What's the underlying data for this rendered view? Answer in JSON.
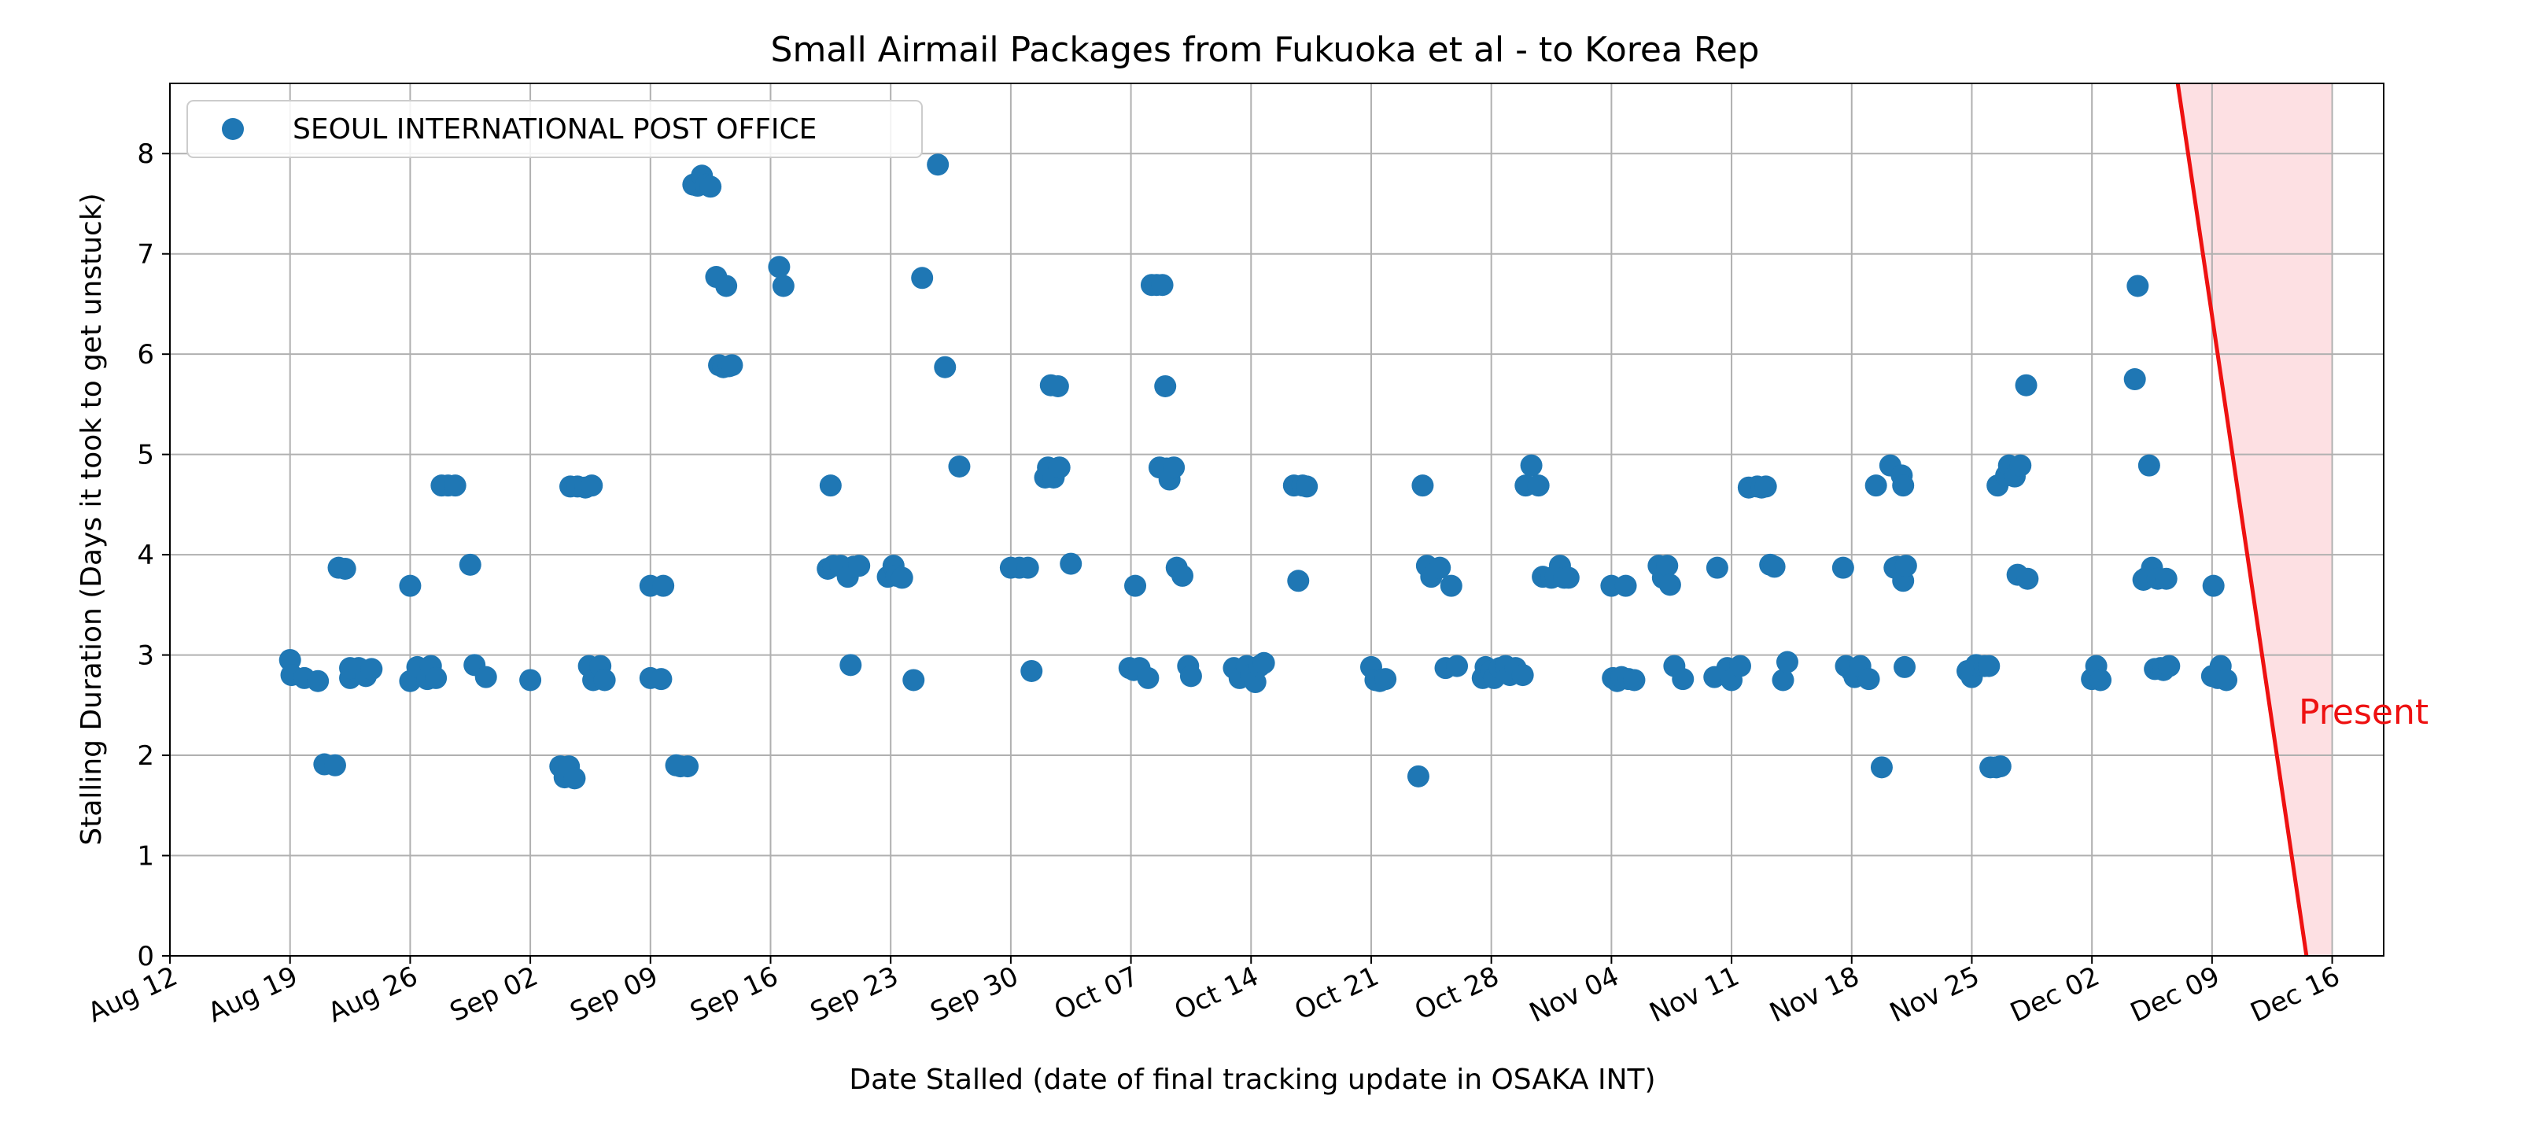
{
  "chart_data": {
    "type": "scatter",
    "title": "Small Airmail Packages from Fukuoka et al - to Korea Rep",
    "xlabel": "Date Stalled (date of final tracking update in OSAKA INT)",
    "ylabel": "Stalling Duration (Days it took to get unstuck)",
    "x_axis_kind": "date",
    "xlim": [
      "2024-08-12",
      "2024-12-19"
    ],
    "ylim": [
      0,
      8.7
    ],
    "x_ticks": [
      {
        "date": "2024-08-12",
        "label": "Aug 12"
      },
      {
        "date": "2024-08-19",
        "label": "Aug 19"
      },
      {
        "date": "2024-08-26",
        "label": "Aug 26"
      },
      {
        "date": "2024-09-02",
        "label": "Sep 02"
      },
      {
        "date": "2024-09-09",
        "label": "Sep 09"
      },
      {
        "date": "2024-09-16",
        "label": "Sep 16"
      },
      {
        "date": "2024-09-23",
        "label": "Sep 23"
      },
      {
        "date": "2024-09-30",
        "label": "Sep 30"
      },
      {
        "date": "2024-10-07",
        "label": "Oct 07"
      },
      {
        "date": "2024-10-14",
        "label": "Oct 14"
      },
      {
        "date": "2024-10-21",
        "label": "Oct 21"
      },
      {
        "date": "2024-10-28",
        "label": "Oct 28"
      },
      {
        "date": "2024-11-04",
        "label": "Nov 04"
      },
      {
        "date": "2024-11-11",
        "label": "Nov 11"
      },
      {
        "date": "2024-11-18",
        "label": "Nov 18"
      },
      {
        "date": "2024-11-25",
        "label": "Nov 25"
      },
      {
        "date": "2024-12-02",
        "label": "Dec 02"
      },
      {
        "date": "2024-12-09",
        "label": "Dec 09"
      },
      {
        "date": "2024-12-16",
        "label": "Dec 16"
      }
    ],
    "y_ticks": [
      {
        "value": 0,
        "label": "0"
      },
      {
        "value": 1,
        "label": "1"
      },
      {
        "value": 2,
        "label": "2"
      },
      {
        "value": 3,
        "label": "3"
      },
      {
        "value": 4,
        "label": "4"
      },
      {
        "value": 5,
        "label": "5"
      },
      {
        "value": 6,
        "label": "6"
      },
      {
        "value": 7,
        "label": "7"
      },
      {
        "value": 8,
        "label": "8"
      }
    ],
    "grid": true,
    "legend": "top-left",
    "colors": {
      "series": "#1f77b4",
      "present_line": "#ee1111",
      "present_fill": "#fde0e3",
      "grid": "#b0b0b0"
    },
    "series": [
      {
        "name": "SEOUL INTERNATIONAL POST OFFICE",
        "points": [
          [
            "2024-08-19T00:00",
            2.95
          ],
          [
            "2024-08-19T02:00",
            2.8
          ],
          [
            "2024-08-19T20:00",
            2.77
          ],
          [
            "2024-08-20T15:00",
            2.74
          ],
          [
            "2024-08-21T00:00",
            1.91
          ],
          [
            "2024-08-21T15:00",
            1.9
          ],
          [
            "2024-08-21T20:00",
            3.87
          ],
          [
            "2024-08-22T05:00",
            3.86
          ],
          [
            "2024-08-22T12:00",
            2.77
          ],
          [
            "2024-08-22T12:00",
            2.87
          ],
          [
            "2024-08-23T00:00",
            2.87
          ],
          [
            "2024-08-23T10:00",
            2.79
          ],
          [
            "2024-08-23T18:00",
            2.86
          ],
          [
            "2024-08-26T00:00",
            3.69
          ],
          [
            "2024-08-26T00:00",
            2.74
          ],
          [
            "2024-08-26T10:00",
            2.88
          ],
          [
            "2024-08-27T00:00",
            2.76
          ],
          [
            "2024-08-27T05:00",
            2.89
          ],
          [
            "2024-08-27T12:00",
            2.77
          ],
          [
            "2024-08-27T20:00",
            4.69
          ],
          [
            "2024-08-28T05:00",
            4.69
          ],
          [
            "2024-08-28T15:00",
            4.69
          ],
          [
            "2024-08-29T12:00",
            3.9
          ],
          [
            "2024-08-29T18:00",
            2.9
          ],
          [
            "2024-08-30T10:00",
            2.78
          ],
          [
            "2024-09-02T00:00",
            2.75
          ],
          [
            "2024-09-03T18:00",
            1.89
          ],
          [
            "2024-09-04T00:00",
            1.78
          ],
          [
            "2024-09-04T06:00",
            1.89
          ],
          [
            "2024-09-04T08:00",
            4.68
          ],
          [
            "2024-09-04T14:00",
            1.77
          ],
          [
            "2024-09-04T18:00",
            4.68
          ],
          [
            "2024-09-05T05:00",
            4.67
          ],
          [
            "2024-09-05T10:00",
            2.89
          ],
          [
            "2024-09-05T14:00",
            4.69
          ],
          [
            "2024-09-05T16:00",
            2.75
          ],
          [
            "2024-09-06T02:00",
            2.89
          ],
          [
            "2024-09-06T08:00",
            2.75
          ],
          [
            "2024-09-09T00:00",
            3.69
          ],
          [
            "2024-09-09T00:00",
            2.77
          ],
          [
            "2024-09-09T15:00",
            2.76
          ],
          [
            "2024-09-09T18:00",
            3.69
          ],
          [
            "2024-09-10T12:00",
            1.9
          ],
          [
            "2024-09-10T18:00",
            1.89
          ],
          [
            "2024-09-11T04:00",
            1.89
          ],
          [
            "2024-09-11T12:00",
            7.69
          ],
          [
            "2024-09-11T18:00",
            7.68
          ],
          [
            "2024-09-12T00:00",
            7.78
          ],
          [
            "2024-09-12T06:00",
            7.69
          ],
          [
            "2024-09-12T12:00",
            7.67
          ],
          [
            "2024-09-12T20:00",
            6.77
          ],
          [
            "2024-09-13T00:00",
            5.89
          ],
          [
            "2024-09-13T06:00",
            5.87
          ],
          [
            "2024-09-13T10:00",
            6.68
          ],
          [
            "2024-09-13T14:00",
            5.88
          ],
          [
            "2024-09-13T18:00",
            5.89
          ],
          [
            "2024-09-16T12:00",
            6.87
          ],
          [
            "2024-09-16T18:00",
            6.68
          ],
          [
            "2024-09-19T12:00",
            4.69
          ],
          [
            "2024-09-19T08:00",
            3.86
          ],
          [
            "2024-09-19T16:00",
            3.89
          ],
          [
            "2024-09-20T02:00",
            3.89
          ],
          [
            "2024-09-20T12:00",
            3.78
          ],
          [
            "2024-09-20T16:00",
            2.9
          ],
          [
            "2024-09-20T20:00",
            3.88
          ],
          [
            "2024-09-21T04:00",
            3.89
          ],
          [
            "2024-09-22T20:00",
            3.78
          ],
          [
            "2024-09-23T04:00",
            3.89
          ],
          [
            "2024-09-23T08:00",
            3.79
          ],
          [
            "2024-09-23T16:00",
            3.77
          ],
          [
            "2024-09-24T08:00",
            2.75
          ],
          [
            "2024-09-24T20:00",
            6.76
          ],
          [
            "2024-09-25T18:00",
            7.89
          ],
          [
            "2024-09-26T04:00",
            5.87
          ],
          [
            "2024-09-27T00:00",
            4.88
          ],
          [
            "2024-09-30T00:00",
            3.87
          ],
          [
            "2024-09-30T12:00",
            3.87
          ],
          [
            "2024-10-01T00:00",
            3.87
          ],
          [
            "2024-10-01T05:00",
            2.84
          ],
          [
            "2024-10-02T00:00",
            4.77
          ],
          [
            "2024-10-02T04:00",
            4.87
          ],
          [
            "2024-10-02T08:00",
            5.69
          ],
          [
            "2024-10-02T12:00",
            4.77
          ],
          [
            "2024-10-02T18:00",
            5.68
          ],
          [
            "2024-10-02T20:00",
            4.87
          ],
          [
            "2024-10-03T12:00",
            3.91
          ],
          [
            "2024-10-06T22:00",
            2.87
          ],
          [
            "2024-10-07T04:00",
            2.85
          ],
          [
            "2024-10-07T06:00",
            3.69
          ],
          [
            "2024-10-07T12:00",
            2.87
          ],
          [
            "2024-10-08T00:00",
            2.77
          ],
          [
            "2024-10-08T05:00",
            6.69
          ],
          [
            "2024-10-08T12:00",
            6.69
          ],
          [
            "2024-10-08T16:00",
            4.87
          ],
          [
            "2024-10-08T20:00",
            6.69
          ],
          [
            "2024-10-09T00:00",
            5.68
          ],
          [
            "2024-10-09T02:00",
            4.86
          ],
          [
            "2024-10-09T06:00",
            4.75
          ],
          [
            "2024-10-09T12:00",
            4.87
          ],
          [
            "2024-10-09T16:00",
            3.87
          ],
          [
            "2024-10-10T00:00",
            3.79
          ],
          [
            "2024-10-10T08:00",
            2.89
          ],
          [
            "2024-10-10T12:00",
            2.79
          ],
          [
            "2024-10-13T00:00",
            2.87
          ],
          [
            "2024-10-13T08:00",
            2.77
          ],
          [
            "2024-10-13T18:00",
            2.89
          ],
          [
            "2024-10-14T00:00",
            2.8
          ],
          [
            "2024-10-14T06:00",
            2.73
          ],
          [
            "2024-10-14T12:00",
            2.89
          ],
          [
            "2024-10-14T18:00",
            2.92
          ],
          [
            "2024-10-16T12:00",
            4.69
          ],
          [
            "2024-10-16T18:00",
            3.74
          ],
          [
            "2024-10-17T00:00",
            4.69
          ],
          [
            "2024-10-17T06:00",
            4.68
          ],
          [
            "2024-10-21T00:00",
            2.88
          ],
          [
            "2024-10-21T06:00",
            2.75
          ],
          [
            "2024-10-21T12:00",
            2.74
          ],
          [
            "2024-10-21T20:00",
            2.76
          ],
          [
            "2024-10-23T18:00",
            1.79
          ],
          [
            "2024-10-24T00:00",
            4.69
          ],
          [
            "2024-10-24T06:00",
            3.89
          ],
          [
            "2024-10-24T12:00",
            3.78
          ],
          [
            "2024-10-25T00:00",
            3.87
          ],
          [
            "2024-10-25T08:00",
            2.87
          ],
          [
            "2024-10-25T16:00",
            3.69
          ],
          [
            "2024-10-26T00:00",
            2.89
          ],
          [
            "2024-10-27T12:00",
            2.77
          ],
          [
            "2024-10-27T16:00",
            2.88
          ],
          [
            "2024-10-28T00:00",
            2.84
          ],
          [
            "2024-10-28T04:00",
            2.77
          ],
          [
            "2024-10-28T12:00",
            2.87
          ],
          [
            "2024-10-28T20:00",
            2.89
          ],
          [
            "2024-10-29T02:00",
            2.8
          ],
          [
            "2024-10-29T10:00",
            2.87
          ],
          [
            "2024-10-29T20:00",
            2.8
          ],
          [
            "2024-10-30T00:00",
            4.69
          ],
          [
            "2024-10-30T08:00",
            4.89
          ],
          [
            "2024-10-30T18:00",
            4.69
          ],
          [
            "2024-10-31T00:00",
            3.78
          ],
          [
            "2024-10-31T12:00",
            3.77
          ],
          [
            "2024-10-31T18:00",
            3.79
          ],
          [
            "2024-11-01T00:00",
            3.89
          ],
          [
            "2024-11-01T06:00",
            3.77
          ],
          [
            "2024-11-01T12:00",
            3.77
          ],
          [
            "2024-11-04T00:00",
            3.69
          ],
          [
            "2024-11-04T02:00",
            2.77
          ],
          [
            "2024-11-04T08:00",
            2.74
          ],
          [
            "2024-11-04T14:00",
            2.78
          ],
          [
            "2024-11-04T20:00",
            3.69
          ],
          [
            "2024-11-05T00:00",
            2.76
          ],
          [
            "2024-11-05T08:00",
            2.75
          ],
          [
            "2024-11-06T18:00",
            3.89
          ],
          [
            "2024-11-07T00:00",
            3.77
          ],
          [
            "2024-11-07T06:00",
            3.89
          ],
          [
            "2024-11-07T10:00",
            3.7
          ],
          [
            "2024-11-07T16:00",
            2.89
          ],
          [
            "2024-11-08T04:00",
            2.76
          ],
          [
            "2024-11-10T00:00",
            2.78
          ],
          [
            "2024-11-10T04:00",
            3.87
          ],
          [
            "2024-11-10T18:00",
            2.87
          ],
          [
            "2024-11-11T00:00",
            2.75
          ],
          [
            "2024-11-11T12:00",
            2.89
          ],
          [
            "2024-11-12T00:00",
            4.67
          ],
          [
            "2024-11-12T12:00",
            4.68
          ],
          [
            "2024-11-12T18:00",
            4.67
          ],
          [
            "2024-11-13T00:00",
            4.68
          ],
          [
            "2024-11-13T06:00",
            3.9
          ],
          [
            "2024-11-13T12:00",
            3.88
          ],
          [
            "2024-11-14T00:00",
            2.75
          ],
          [
            "2024-11-14T06:00",
            2.93
          ],
          [
            "2024-11-17T12:00",
            3.87
          ],
          [
            "2024-11-17T16:00",
            2.89
          ],
          [
            "2024-11-18T00:00",
            2.84
          ],
          [
            "2024-11-18T04:00",
            2.78
          ],
          [
            "2024-11-18T12:00",
            2.89
          ],
          [
            "2024-11-19T00:00",
            2.76
          ],
          [
            "2024-11-19T10:00",
            4.69
          ],
          [
            "2024-11-19T18:00",
            1.88
          ],
          [
            "2024-11-20T06:00",
            4.89
          ],
          [
            "2024-11-20T12:00",
            3.87
          ],
          [
            "2024-11-20T16:00",
            3.88
          ],
          [
            "2024-11-20T22:00",
            4.79
          ],
          [
            "2024-11-21T00:00",
            4.69
          ],
          [
            "2024-11-21T00:00",
            3.74
          ],
          [
            "2024-11-21T02:00",
            2.88
          ],
          [
            "2024-11-21T04:00",
            3.89
          ],
          [
            "2024-11-24T18:00",
            2.84
          ],
          [
            "2024-11-25T00:00",
            2.78
          ],
          [
            "2024-11-25T06:00",
            2.9
          ],
          [
            "2024-11-25T18:00",
            2.89
          ],
          [
            "2024-11-26T00:00",
            2.89
          ],
          [
            "2024-11-26T02:00",
            1.88
          ],
          [
            "2024-11-26T10:00",
            1.88
          ],
          [
            "2024-11-26T16:00",
            1.89
          ],
          [
            "2024-11-26T12:00",
            4.69
          ],
          [
            "2024-11-27T00:00",
            4.79
          ],
          [
            "2024-11-27T04:00",
            4.89
          ],
          [
            "2024-11-27T12:00",
            4.78
          ],
          [
            "2024-11-27T16:00",
            3.8
          ],
          [
            "2024-11-27T20:00",
            4.89
          ],
          [
            "2024-11-28T04:00",
            5.69
          ],
          [
            "2024-11-28T06:00",
            3.76
          ],
          [
            "2024-12-02T00:00",
            2.76
          ],
          [
            "2024-12-02T06:00",
            2.89
          ],
          [
            "2024-12-02T12:00",
            2.75
          ],
          [
            "2024-12-04T12:00",
            5.75
          ],
          [
            "2024-12-04T16:00",
            6.68
          ],
          [
            "2024-12-05T00:00",
            3.75
          ],
          [
            "2024-12-05T04:00",
            3.77
          ],
          [
            "2024-12-05T08:00",
            4.89
          ],
          [
            "2024-12-05T12:00",
            3.87
          ],
          [
            "2024-12-05T16:00",
            2.86
          ],
          [
            "2024-12-05T20:00",
            3.76
          ],
          [
            "2024-12-06T00:00",
            2.87
          ],
          [
            "2024-12-06T04:00",
            2.85
          ],
          [
            "2024-12-06T08:00",
            3.76
          ],
          [
            "2024-12-06T12:00",
            2.89
          ],
          [
            "2024-12-09T00:00",
            2.79
          ],
          [
            "2024-12-09T02:00",
            3.69
          ],
          [
            "2024-12-09T08:00",
            2.77
          ],
          [
            "2024-12-09T12:00",
            2.89
          ],
          [
            "2024-12-09T20:00",
            2.75
          ]
        ]
      }
    ],
    "present": {
      "label": "Present",
      "line_top": {
        "date": "2024-12-07T00:00",
        "value": 8.7
      },
      "line_bottom": {
        "date": "2024-12-14T12:00",
        "value": 0
      },
      "fill_to": "2024-12-16"
    }
  }
}
